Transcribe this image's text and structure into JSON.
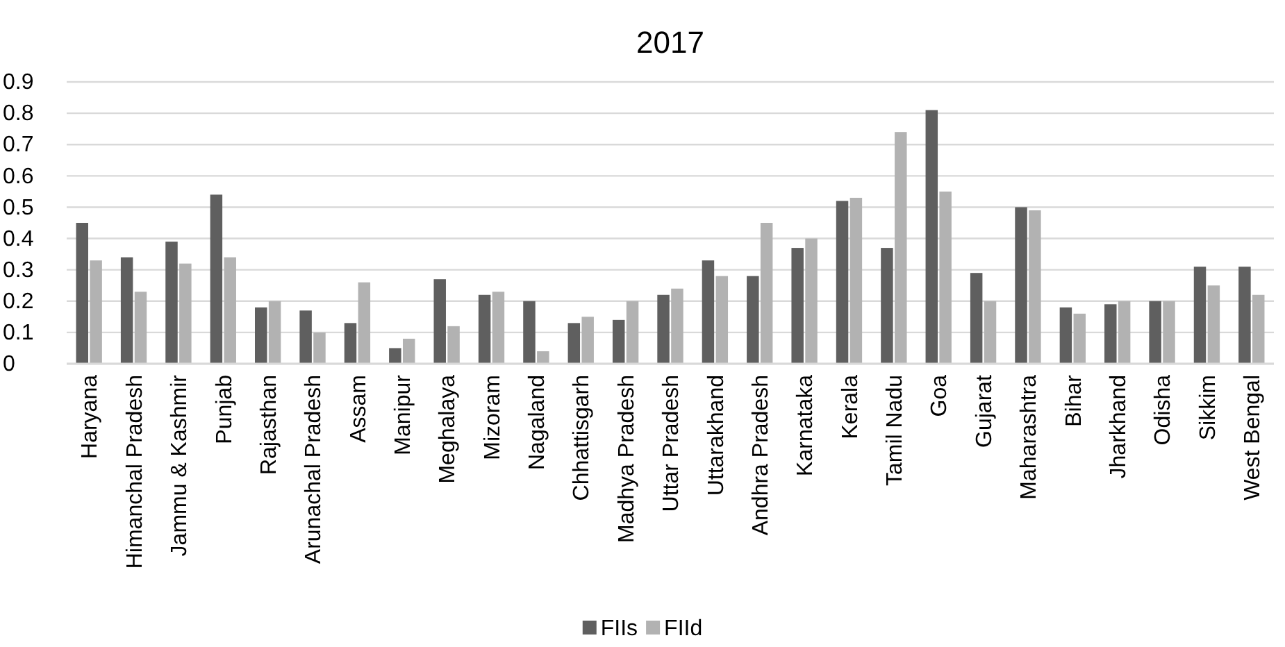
{
  "chart_data": {
    "type": "bar",
    "title": "2017",
    "categories": [
      "Haryana",
      "Himanchal Pradesh",
      "Jammu & Kashmir",
      "Punjab",
      "Rajasthan",
      "Arunachal Pradesh",
      "Assam",
      "Manipur",
      "Meghalaya",
      "Mizoram",
      "Nagaland",
      "Chhattisgarh",
      "Madhya Pradesh",
      "Uttar Pradesh",
      "Uttarakhand",
      "Andhra Pradesh",
      "Karnataka",
      "Kerala",
      "Tamil Nadu",
      "Goa",
      "Gujarat",
      "Maharashtra",
      "Bihar",
      "Jharkhand",
      "Odisha",
      "Sikkim",
      "West Bengal"
    ],
    "series": [
      {
        "name": "FIIs",
        "color": "#5f5f5f",
        "values": [
          0.45,
          0.34,
          0.39,
          0.54,
          0.18,
          0.17,
          0.13,
          0.05,
          0.27,
          0.22,
          0.2,
          0.13,
          0.14,
          0.22,
          0.33,
          0.28,
          0.37,
          0.52,
          0.37,
          0.81,
          0.29,
          0.5,
          0.18,
          0.19,
          0.2,
          0.31,
          0.31
        ]
      },
      {
        "name": "FIId",
        "color": "#b2b2b2",
        "values": [
          0.33,
          0.23,
          0.32,
          0.34,
          0.2,
          0.1,
          0.26,
          0.08,
          0.12,
          0.23,
          0.04,
          0.15,
          0.2,
          0.24,
          0.28,
          0.45,
          0.4,
          0.53,
          0.74,
          0.55,
          0.2,
          0.49,
          0.16,
          0.2,
          0.2,
          0.25,
          0.22
        ]
      }
    ],
    "ylim": [
      0,
      0.9
    ],
    "yticks": [
      0,
      0.1,
      0.2,
      0.3,
      0.4,
      0.5,
      0.6,
      0.7,
      0.8,
      0.9
    ],
    "grid": "y",
    "legend": "bottom"
  }
}
